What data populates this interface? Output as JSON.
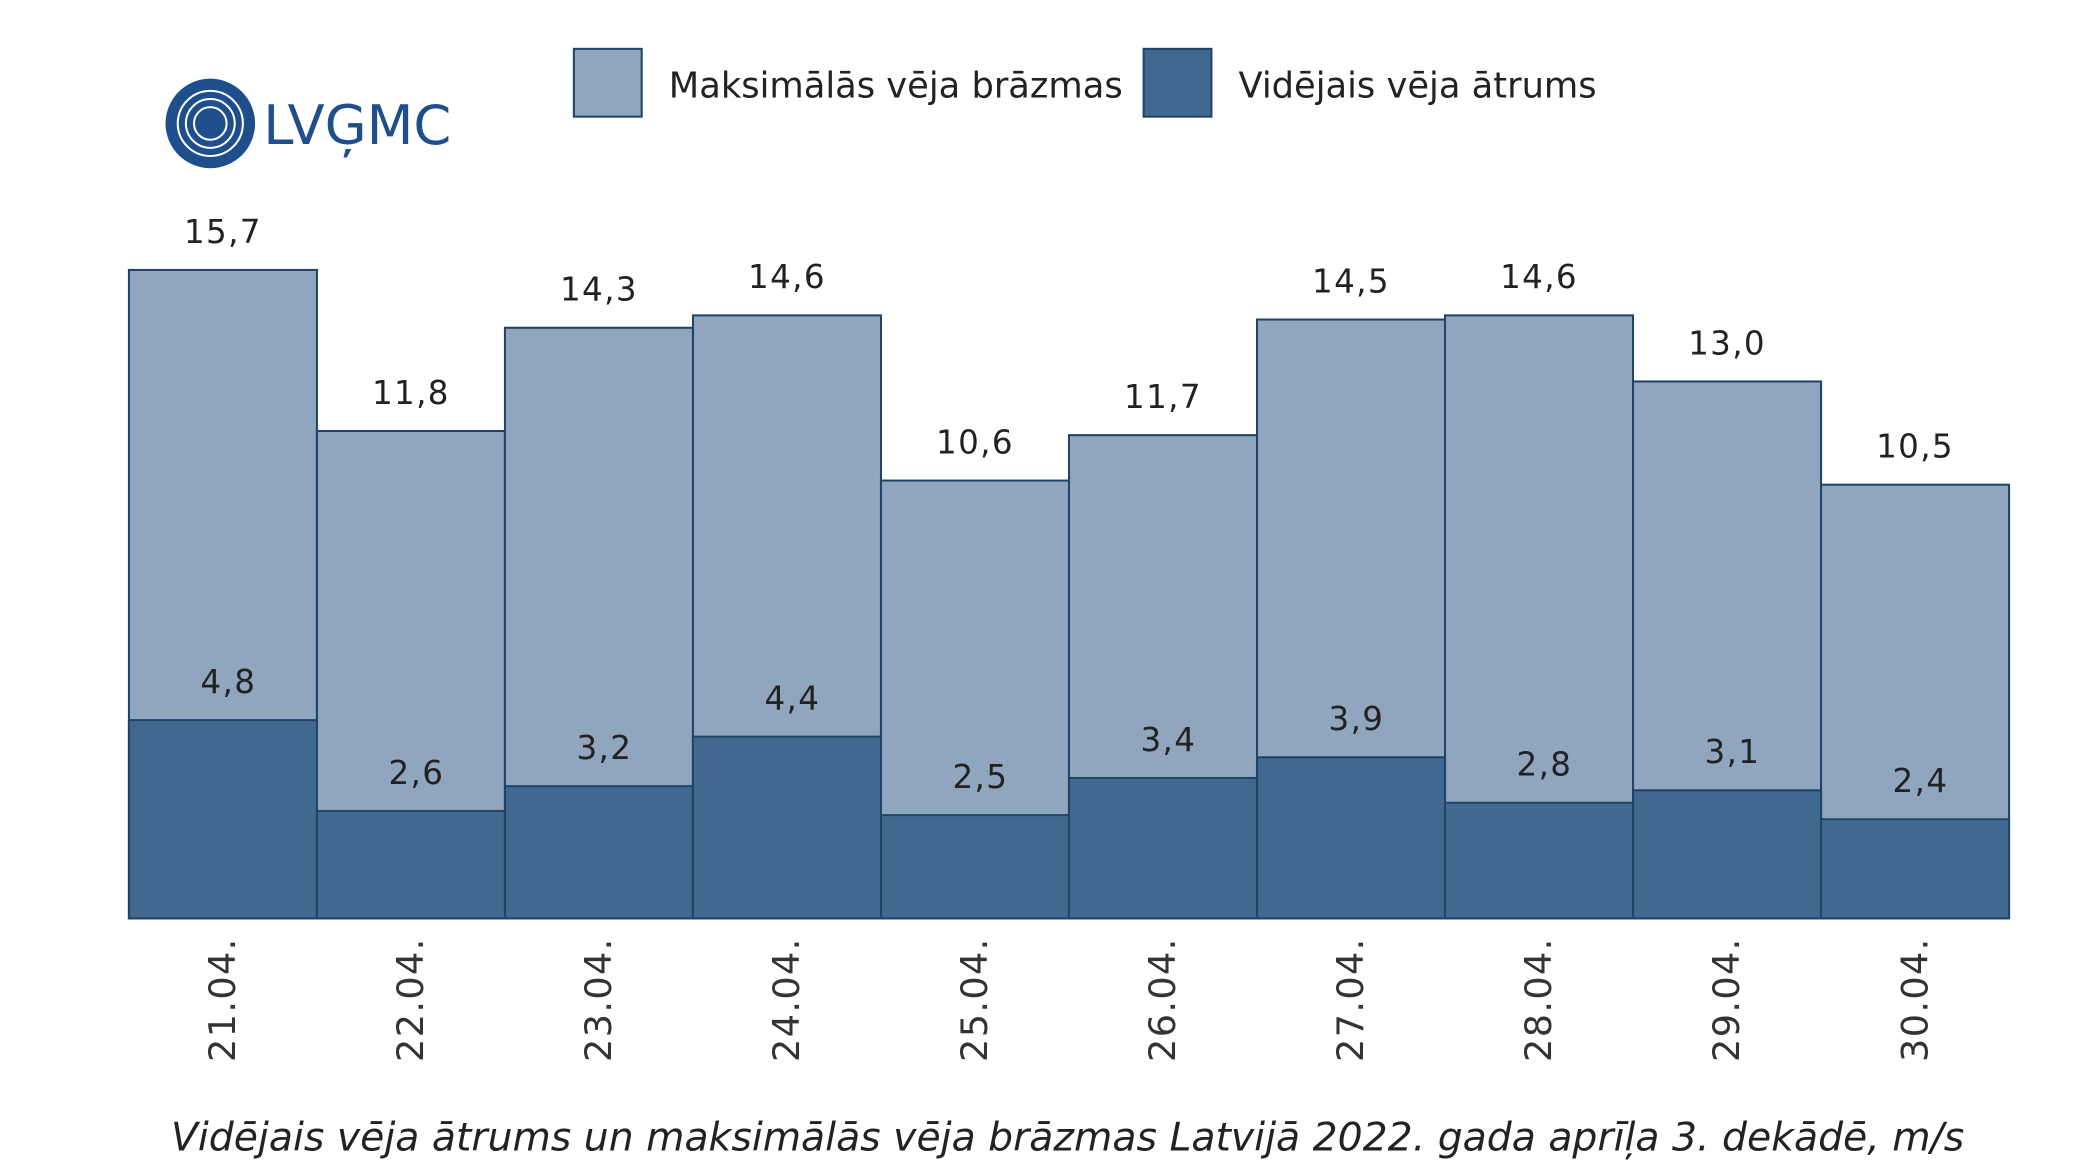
{
  "logo": "LVĢMC",
  "chart_data": {
    "type": "bar",
    "overlap": true,
    "title": "Vidējais vēja ātrums un maksimālās vēja brāzmas Latvijā 2022. gada aprīļa 3. dekādē, m/s",
    "categories": [
      "21.04.",
      "22.04.",
      "23.04.",
      "24.04.",
      "25.04.",
      "26.04.",
      "27.04.",
      "28.04.",
      "29.04.",
      "30.04."
    ],
    "series": [
      {
        "name": "Maksimālās vēja brāzmas",
        "color": "#8fa6be",
        "values": [
          15.7,
          11.8,
          14.3,
          14.6,
          10.6,
          11.7,
          14.5,
          14.6,
          13.0,
          10.5
        ],
        "value_labels": [
          "15,7",
          "11,8",
          "14,3",
          "14,6",
          "10,6",
          "11,7",
          "14,5",
          "14,6",
          "13,0",
          "10,5"
        ]
      },
      {
        "name": "Vidējais vēja ātrums",
        "color": "#41688e",
        "values": [
          4.8,
          2.6,
          3.2,
          4.4,
          2.5,
          3.4,
          3.9,
          2.8,
          3.1,
          2.4
        ],
        "value_labels": [
          "4,8",
          "2,6",
          "3,2",
          "4,4",
          "2,5",
          "3,4",
          "3,9",
          "2,8",
          "3,1",
          "2,4"
        ]
      }
    ]
  }
}
